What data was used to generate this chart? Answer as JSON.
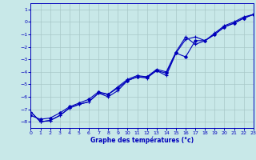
{
  "xlabel": "Graphe des températures (°c)",
  "background_color": "#c8e8e8",
  "grid_color": "#a8c8c8",
  "line_color": "#0000bb",
  "xlim": [
    0,
    23
  ],
  "ylim": [
    -8.5,
    1.5
  ],
  "yticks": [
    1,
    0,
    -1,
    -2,
    -3,
    -4,
    -5,
    -6,
    -7,
    -8
  ],
  "xticks": [
    0,
    1,
    2,
    3,
    4,
    5,
    6,
    7,
    8,
    9,
    10,
    11,
    12,
    13,
    14,
    15,
    16,
    17,
    18,
    19,
    20,
    21,
    22,
    23
  ],
  "line1_x": [
    0,
    1,
    2,
    3,
    4,
    5,
    6,
    7,
    8,
    9,
    10,
    11,
    12,
    13,
    14,
    15,
    16,
    17,
    18,
    19,
    20,
    21,
    22,
    23
  ],
  "line1_y": [
    -7.2,
    -8.0,
    -7.9,
    -7.5,
    -6.9,
    -6.6,
    -6.4,
    -5.7,
    -6.0,
    -5.5,
    -4.7,
    -4.4,
    -4.5,
    -3.9,
    -4.3,
    -2.5,
    -1.4,
    -1.2,
    -1.5,
    -1.0,
    -0.4,
    -0.1,
    0.3,
    0.6
  ],
  "line2_x": [
    0,
    1,
    2,
    3,
    4,
    5,
    6,
    7,
    8,
    9,
    10,
    11,
    12,
    13,
    14,
    15,
    16,
    17,
    18,
    19,
    20,
    21,
    22,
    23
  ],
  "line2_y": [
    -7.2,
    -8.0,
    -7.9,
    -7.5,
    -6.9,
    -6.6,
    -6.4,
    -5.7,
    -5.8,
    -5.2,
    -4.6,
    -4.3,
    -4.4,
    -3.8,
    -4.0,
    -2.4,
    -1.2,
    -1.8,
    -1.5,
    -0.9,
    -0.3,
    0.0,
    0.4,
    0.6
  ],
  "line3_x": [
    0,
    1,
    2,
    3,
    4,
    5,
    6,
    7,
    8,
    9,
    10,
    11,
    12,
    13,
    14,
    15,
    16,
    17,
    18,
    19,
    20,
    21,
    22,
    23
  ],
  "line3_y": [
    -7.5,
    -7.8,
    -7.7,
    -7.3,
    -6.8,
    -6.5,
    -6.2,
    -5.6,
    -5.8,
    -5.3,
    -4.7,
    -4.4,
    -4.4,
    -3.9,
    -4.1,
    -2.5,
    -2.8,
    -1.5,
    -1.5,
    -1.0,
    -0.4,
    -0.1,
    0.3,
    0.6
  ]
}
